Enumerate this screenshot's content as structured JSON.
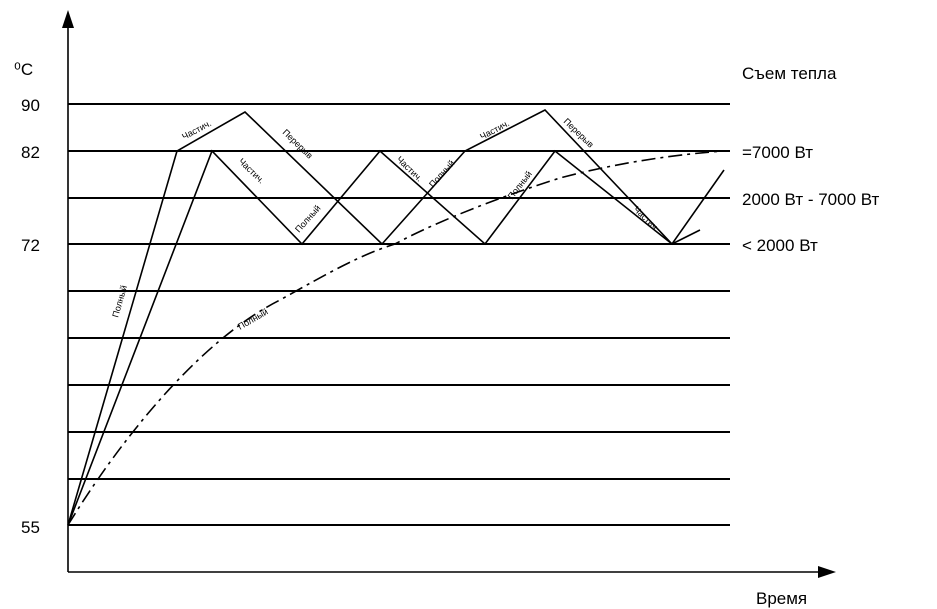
{
  "axes": {
    "y_unit": "⁰C",
    "x_label": "Время",
    "y_ticks": [
      "90",
      "82",
      "72",
      "55"
    ]
  },
  "legend": {
    "title": "Съем тепла",
    "items": [
      "=7000 Вт",
      "2000 Вт - 7000 Вт",
      "<  2000 Вт"
    ]
  },
  "segment_labels": {
    "full": "Полный",
    "partial": "Частич.",
    "pause": "Перерыв"
  },
  "colors": {
    "line": "#000000",
    "background": "#ffffff"
  }
}
